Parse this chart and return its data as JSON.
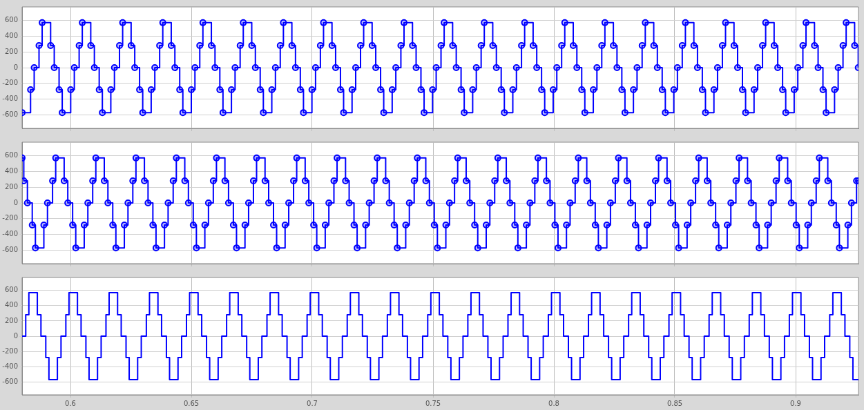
{
  "chart_data": [
    {
      "type": "step",
      "marker": "circle",
      "grid": true,
      "tick_labels": "y",
      "xlim": [
        0.58,
        0.926
      ],
      "xticks": [
        0.6,
        0.65,
        0.7,
        0.75,
        0.8,
        0.85,
        0.9
      ],
      "ylim": [
        -770,
        770
      ],
      "yticks": [
        -600,
        -400,
        -200,
        0,
        200,
        400,
        600
      ],
      "series": [
        {
          "color": "#0000ff",
          "x": [
            0.58,
            0.5835,
            0.585,
            0.587,
            0.5883,
            0.5918,
            0.5933,
            0.5953,
            0.5966,
            0.6001,
            0.6016,
            0.6036,
            0.6049,
            0.6084,
            0.6099,
            0.6119,
            0.6132,
            0.6167,
            0.6182,
            0.6203,
            0.6216,
            0.6251,
            0.6266,
            0.6286,
            0.6299,
            0.6334,
            0.6349,
            0.6369,
            0.6382,
            0.6417,
            0.6432,
            0.6452,
            0.6465,
            0.65,
            0.6515,
            0.6535,
            0.6548,
            0.6583,
            0.6598,
            0.6618,
            0.6631,
            0.6666,
            0.6681,
            0.6702,
            0.6715,
            0.675,
            0.6765,
            0.6785,
            0.6798,
            0.6833,
            0.6848,
            0.6868,
            0.6881,
            0.6916,
            0.6931,
            0.6951,
            0.6964,
            0.6999,
            0.7014,
            0.7034,
            0.7047,
            0.7082,
            0.7097,
            0.7117,
            0.713,
            0.7165,
            0.718,
            0.72,
            0.7213,
            0.7248,
            0.7263,
            0.7283,
            0.7296,
            0.7331,
            0.7346,
            0.7367,
            0.738,
            0.7415,
            0.743,
            0.745,
            0.7463,
            0.7498,
            0.7513,
            0.7533,
            0.7546,
            0.7581,
            0.7596,
            0.7616,
            0.7629,
            0.7664,
            0.7679,
            0.7699,
            0.7712,
            0.7747,
            0.7762,
            0.7782,
            0.7795,
            0.783,
            0.7845,
            0.7866,
            0.7879,
            0.7914,
            0.7929,
            0.7949,
            0.7962,
            0.7997,
            0.8012,
            0.8032,
            0.8045,
            0.808,
            0.8095,
            0.8115,
            0.8128,
            0.8163,
            0.8178,
            0.8198,
            0.8211,
            0.8246,
            0.8261,
            0.8281,
            0.8294,
            0.8329,
            0.8344,
            0.8365,
            0.8378,
            0.8413,
            0.8428,
            0.8448,
            0.8461,
            0.8496,
            0.8511,
            0.8531,
            0.8544,
            0.8579,
            0.8594,
            0.8614,
            0.8627,
            0.8662,
            0.8677,
            0.8697,
            0.871,
            0.8745,
            0.876,
            0.878,
            0.8793,
            0.8828,
            0.8843,
            0.8863,
            0.8876,
            0.8911,
            0.8926,
            0.8946,
            0.8959,
            0.8994,
            0.9009,
            0.903,
            0.9043,
            0.9078,
            0.9093,
            0.9113,
            0.9126,
            0.9161,
            0.9176,
            0.9196,
            0.9209,
            0.9244,
            0.9259
          ],
          "values": [
            -570,
            -280,
            0,
            280,
            570,
            280,
            0,
            -280,
            -570,
            -280,
            0,
            280,
            570,
            280,
            0,
            -280,
            -570,
            -280,
            0,
            280,
            570,
            280,
            0,
            -280,
            -570,
            -280,
            0,
            280,
            570,
            280,
            0,
            -280,
            -570,
            -280,
            0,
            280,
            570,
            280,
            0,
            -280,
            -570,
            -280,
            0,
            280,
            570,
            280,
            0,
            -280,
            -570,
            -280,
            0,
            280,
            570,
            280,
            0,
            -280,
            -570,
            -280,
            0,
            280,
            570,
            280,
            0,
            -280,
            -570,
            -280,
            0,
            280,
            570,
            280,
            0,
            -280,
            -570,
            -280,
            0,
            280,
            570,
            280,
            0,
            -280,
            -570,
            -280,
            0,
            280,
            570,
            280,
            0,
            -280,
            -570,
            -280,
            0,
            280,
            570,
            280,
            0,
            -280,
            -570,
            -280,
            0,
            280,
            570,
            280,
            0,
            -280,
            -570,
            -280,
            0,
            280,
            570,
            280,
            0,
            -280,
            -570,
            -280,
            0,
            280,
            570,
            280,
            0,
            -280,
            -570,
            -280,
            0,
            280,
            570,
            280,
            0,
            -280,
            -570,
            -280,
            0,
            280,
            570,
            280,
            0,
            -280,
            -570,
            -280,
            0,
            280,
            570,
            280,
            0,
            -280,
            -570,
            -280,
            0,
            280,
            570,
            280,
            0,
            -280,
            -570,
            -280,
            0,
            280,
            570,
            280,
            0,
            -280,
            -570,
            -280,
            0,
            280,
            570,
            280,
            0
          ]
        }
      ]
    },
    {
      "type": "step",
      "marker": "circle",
      "grid": true,
      "tick_labels": "y",
      "xlim": [
        0.58,
        0.926
      ],
      "xticks": [
        0.6,
        0.65,
        0.7,
        0.75,
        0.8,
        0.85,
        0.9
      ],
      "ylim": [
        -770,
        770
      ],
      "yticks": [
        -600,
        -400,
        -200,
        0,
        200,
        400,
        600
      ],
      "series": [
        {
          "color": "#0000ff",
          "x": [
            0.58,
            0.5807,
            0.5822,
            0.5842,
            0.5855,
            0.589,
            0.5905,
            0.5926,
            0.5939,
            0.5974,
            0.5989,
            0.6009,
            0.6022,
            0.6057,
            0.6072,
            0.6092,
            0.6105,
            0.614,
            0.6155,
            0.6175,
            0.6188,
            0.6223,
            0.6238,
            0.6258,
            0.6271,
            0.6306,
            0.6321,
            0.6341,
            0.6354,
            0.6389,
            0.6404,
            0.6425,
            0.6438,
            0.6473,
            0.6488,
            0.6508,
            0.6521,
            0.6556,
            0.6571,
            0.6591,
            0.6604,
            0.6639,
            0.6654,
            0.6674,
            0.6687,
            0.6722,
            0.6737,
            0.6757,
            0.677,
            0.6805,
            0.682,
            0.684,
            0.6853,
            0.6888,
            0.6903,
            0.6923,
            0.6936,
            0.6971,
            0.6986,
            0.7006,
            0.7019,
            0.7054,
            0.7069,
            0.709,
            0.7103,
            0.7138,
            0.7153,
            0.7173,
            0.7186,
            0.7221,
            0.7236,
            0.7256,
            0.7269,
            0.7304,
            0.7319,
            0.7339,
            0.7352,
            0.7387,
            0.7402,
            0.7422,
            0.7435,
            0.747,
            0.7485,
            0.7505,
            0.7518,
            0.7553,
            0.7568,
            0.7589,
            0.7602,
            0.7637,
            0.7652,
            0.7672,
            0.7685,
            0.772,
            0.7735,
            0.7755,
            0.7768,
            0.7803,
            0.7818,
            0.7838,
            0.7851,
            0.7886,
            0.7901,
            0.7921,
            0.7934,
            0.7969,
            0.7984,
            0.8004,
            0.8017,
            0.8052,
            0.8067,
            0.8088,
            0.8101,
            0.8136,
            0.8151,
            0.8171,
            0.8184,
            0.8219,
            0.8234,
            0.8254,
            0.8267,
            0.8302,
            0.8317,
            0.8337,
            0.835,
            0.8385,
            0.84,
            0.842,
            0.8433,
            0.8468,
            0.8483,
            0.8503,
            0.8516,
            0.8551,
            0.8566,
            0.8586,
            0.8599,
            0.8634,
            0.8649,
            0.8669,
            0.8682,
            0.8717,
            0.8732,
            0.8753,
            0.8766,
            0.8801,
            0.8816,
            0.8836,
            0.8849,
            0.8884,
            0.8899,
            0.8919,
            0.8932,
            0.8967,
            0.8982,
            0.9002,
            0.9015,
            0.905,
            0.9065,
            0.9085,
            0.9098,
            0.9133,
            0.9148,
            0.9168,
            0.9181,
            0.9216,
            0.9231,
            0.9252,
            0.926
          ],
          "values": [
            570,
            280,
            0,
            -280,
            -570,
            -280,
            0,
            280,
            570,
            280,
            0,
            -280,
            -570,
            -280,
            0,
            280,
            570,
            280,
            0,
            -280,
            -570,
            -280,
            0,
            280,
            570,
            280,
            0,
            -280,
            -570,
            -280,
            0,
            280,
            570,
            280,
            0,
            -280,
            -570,
            -280,
            0,
            280,
            570,
            280,
            0,
            -280,
            -570,
            -280,
            0,
            280,
            570,
            280,
            0,
            -280,
            -570,
            -280,
            0,
            280,
            570,
            280,
            0,
            -280,
            -570,
            -280,
            0,
            280,
            570,
            280,
            0,
            -280,
            -570,
            -280,
            0,
            280,
            570,
            280,
            0,
            -280,
            -570,
            -280,
            0,
            280,
            570,
            280,
            0,
            -280,
            -570,
            -280,
            0,
            280,
            570,
            280,
            0,
            -280,
            -570,
            -280,
            0,
            280,
            570,
            280,
            0,
            -280,
            -570,
            -280,
            0,
            280,
            570,
            280,
            0,
            -280,
            -570,
            -280,
            0,
            280,
            570,
            280,
            0,
            -280,
            -570,
            -280,
            0,
            280,
            570,
            280,
            0,
            -280,
            -570,
            -280,
            0,
            280,
            570,
            280,
            0,
            -280,
            -570,
            -280,
            0,
            280,
            570,
            280,
            0,
            -280,
            -570,
            -280,
            0,
            280,
            570,
            280,
            0,
            -280,
            -570,
            -280,
            0,
            280,
            570,
            280,
            0,
            -280,
            -570,
            -280,
            0,
            280,
            570,
            280,
            0,
            -280,
            -570,
            -280,
            0,
            280,
            280
          ]
        }
      ]
    },
    {
      "type": "step",
      "grid": true,
      "xlim": [
        0.58,
        0.926
      ],
      "xticks": [
        0.6,
        0.65,
        0.7,
        0.75,
        0.8,
        0.85,
        0.9
      ],
      "ylim": [
        -770,
        770
      ],
      "yticks": [
        -600,
        -400,
        -200,
        0,
        200,
        400,
        600
      ],
      "series": [
        {
          "color": "#0000ff",
          "x": [
            0.58,
            0.5815,
            0.5828,
            0.5863,
            0.5878,
            0.5898,
            0.5911,
            0.5946,
            0.5961,
            0.5981,
            0.5994,
            0.6029,
            0.6044,
            0.6064,
            0.6077,
            0.6112,
            0.6127,
            0.6147,
            0.616,
            0.6195,
            0.621,
            0.623,
            0.6243,
            0.6278,
            0.6293,
            0.6314,
            0.6327,
            0.6362,
            0.6377,
            0.6397,
            0.641,
            0.6445,
            0.646,
            0.648,
            0.6493,
            0.6528,
            0.6543,
            0.6563,
            0.6576,
            0.6611,
            0.6626,
            0.6646,
            0.6659,
            0.6694,
            0.6709,
            0.6729,
            0.6742,
            0.6777,
            0.6792,
            0.6813,
            0.6826,
            0.6861,
            0.6876,
            0.6896,
            0.6909,
            0.6944,
            0.6959,
            0.6979,
            0.6992,
            0.7027,
            0.7042,
            0.7062,
            0.7075,
            0.711,
            0.7125,
            0.7145,
            0.7158,
            0.7193,
            0.7208,
            0.7228,
            0.7241,
            0.7276,
            0.7291,
            0.7311,
            0.7324,
            0.7359,
            0.7374,
            0.7394,
            0.7407,
            0.7442,
            0.7457,
            0.7478,
            0.7491,
            0.7526,
            0.7541,
            0.7561,
            0.7574,
            0.7609,
            0.7624,
            0.7644,
            0.7657,
            0.7692,
            0.7707,
            0.7727,
            0.774,
            0.7775,
            0.779,
            0.781,
            0.7823,
            0.7858,
            0.7873,
            0.7893,
            0.7906,
            0.7941,
            0.7956,
            0.7977,
            0.799,
            0.8025,
            0.804,
            0.806,
            0.8073,
            0.8108,
            0.8123,
            0.8143,
            0.8156,
            0.8191,
            0.8206,
            0.8226,
            0.8239,
            0.8274,
            0.8289,
            0.8309,
            0.8322,
            0.8357,
            0.8372,
            0.8392,
            0.8405,
            0.844,
            0.8455,
            0.8476,
            0.8489,
            0.8524,
            0.8539,
            0.8559,
            0.8572,
            0.8607,
            0.8622,
            0.8642,
            0.8655,
            0.869,
            0.8705,
            0.8725,
            0.8738,
            0.8773,
            0.8788,
            0.8808,
            0.8821,
            0.8856,
            0.8871,
            0.8891,
            0.8904,
            0.8939,
            0.8954,
            0.8974,
            0.8987,
            0.9022,
            0.9037,
            0.9057,
            0.907,
            0.9105,
            0.912,
            0.9141,
            0.9154,
            0.9189,
            0.9204,
            0.9224,
            0.9237,
            0.926
          ],
          "values": [
            0,
            280,
            570,
            280,
            0,
            -280,
            -570,
            -280,
            0,
            280,
            570,
            280,
            0,
            -280,
            -570,
            -280,
            0,
            280,
            570,
            280,
            0,
            -280,
            -570,
            -280,
            0,
            280,
            570,
            280,
            0,
            -280,
            -570,
            -280,
            0,
            280,
            570,
            280,
            0,
            -280,
            -570,
            -280,
            0,
            280,
            570,
            280,
            0,
            -280,
            -570,
            -280,
            0,
            280,
            570,
            280,
            0,
            -280,
            -570,
            -280,
            0,
            280,
            570,
            280,
            0,
            -280,
            -570,
            -280,
            0,
            280,
            570,
            280,
            0,
            -280,
            -570,
            -280,
            0,
            280,
            570,
            280,
            0,
            -280,
            -570,
            -280,
            0,
            280,
            570,
            280,
            0,
            -280,
            -570,
            -280,
            0,
            280,
            570,
            280,
            0,
            -280,
            -570,
            -280,
            0,
            280,
            570,
            280,
            0,
            -280,
            -570,
            -280,
            0,
            280,
            570,
            280,
            0,
            -280,
            -570,
            -280,
            0,
            280,
            570,
            280,
            0,
            -280,
            -570,
            -280,
            0,
            280,
            570,
            280,
            0,
            -280,
            -570,
            -280,
            0,
            280,
            570,
            280,
            0,
            -280,
            -570,
            -280,
            0,
            280,
            570,
            280,
            0,
            -280,
            -570,
            -280,
            0,
            280,
            570,
            280,
            0,
            -280,
            -570,
            -280,
            0,
            280,
            570,
            280,
            0,
            -280,
            -570,
            -280,
            0,
            280,
            570,
            280,
            0,
            -280,
            -570,
            -570
          ]
        }
      ]
    }
  ]
}
